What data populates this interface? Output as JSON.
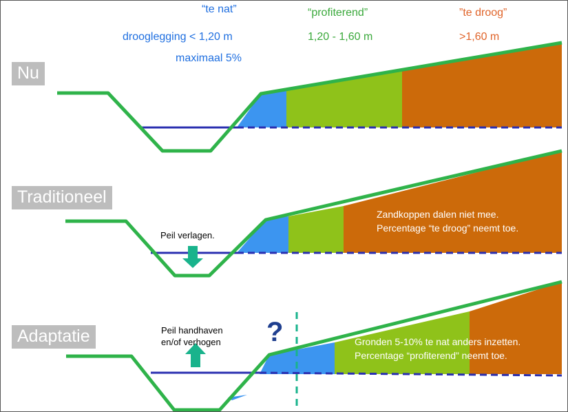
{
  "legend": {
    "wet": {
      "title": "“te nat”",
      "line1": "drooglegging < 1,20 m",
      "line2": "maximaal 5%"
    },
    "profit": {
      "title": "“profiterend”",
      "line1": "1,20 - 1,60 m"
    },
    "dry": {
      "title": "”te droog”",
      "line1": ">1,60 m"
    }
  },
  "scenarios": {
    "nu": {
      "label": "Nu"
    },
    "traditioneel": {
      "label": "Traditioneel",
      "arrow_note": "Peil verlagen.",
      "text1": "Zandkoppen dalen niet mee.",
      "text2": "Percentage “te droog” neemt toe."
    },
    "adaptatie": {
      "label": "Adaptatie",
      "arrow_note1": "Peil handhaven",
      "arrow_note2": "en/of verhogen",
      "question": "?",
      "text1": "Gronden 5-10% te nat anders inzetten.",
      "text2": "Percentage “profiterend” neemt toe."
    }
  },
  "colors": {
    "terrain_line": "#2fb34a",
    "water_line": "#2a2fb0",
    "wet_zone": "#3c95f0",
    "profit_zone": "#8fc21a",
    "dry_zone": "#cc6a0a",
    "arrow": "#19b38c",
    "label_bg": "#bdbdbd",
    "dashed_divider": "#19b38c"
  }
}
